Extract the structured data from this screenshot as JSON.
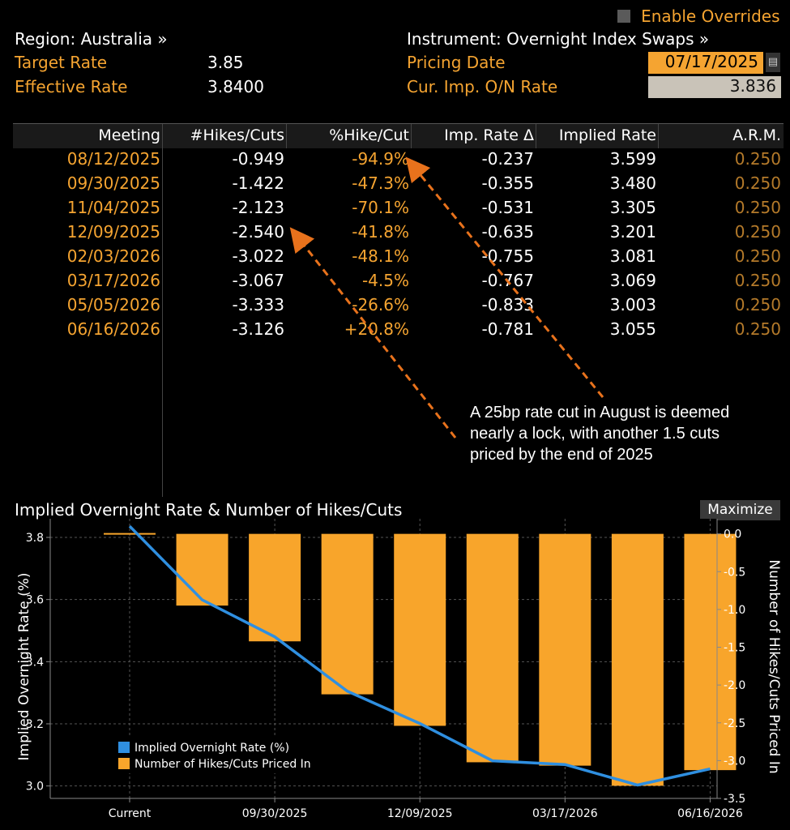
{
  "header": {
    "enable_overrides": "Enable Overrides",
    "region": "Region: Australia »",
    "instrument": "Instrument: Overnight Index Swaps »",
    "target_rate_label": "Target Rate",
    "target_rate_value": "3.85",
    "effective_rate_label": "Effective Rate",
    "effective_rate_value": "3.8400",
    "pricing_date_label": "Pricing Date",
    "pricing_date_value": "07/17/2025",
    "cur_imp_label": "Cur. Imp. O/N Rate",
    "cur_imp_value": "3.836"
  },
  "table": {
    "columns": [
      "Meeting",
      "#Hikes/Cuts",
      "%Hike/Cut",
      "Imp. Rate Δ",
      "Implied Rate",
      "A.R.M."
    ],
    "rows": [
      [
        "08/12/2025",
        "-0.949",
        "-94.9%",
        "-0.237",
        "3.599",
        "0.250"
      ],
      [
        "09/30/2025",
        "-1.422",
        "-47.3%",
        "-0.355",
        "3.480",
        "0.250"
      ],
      [
        "11/04/2025",
        "-2.123",
        "-70.1%",
        "-0.531",
        "3.305",
        "0.250"
      ],
      [
        "12/09/2025",
        "-2.540",
        "-41.8%",
        "-0.635",
        "3.201",
        "0.250"
      ],
      [
        "02/03/2026",
        "-3.022",
        "-48.1%",
        "-0.755",
        "3.081",
        "0.250"
      ],
      [
        "03/17/2026",
        "-3.067",
        "-4.5%",
        "-0.767",
        "3.069",
        "0.250"
      ],
      [
        "05/05/2026",
        "-3.333",
        "-26.6%",
        "-0.833",
        "3.003",
        "0.250"
      ],
      [
        "06/16/2026",
        "-3.126",
        "+20.8%",
        "-0.781",
        "3.055",
        "0.250"
      ]
    ]
  },
  "annotation": {
    "line1": "A 25bp rate cut in August is deemed",
    "line2": "nearly a lock, with another 1.5 cuts",
    "line3": "priced by the end of 2025"
  },
  "chart_title": "Implied Overnight Rate & Number of Hikes/Cuts",
  "maximize_label": "Maximize",
  "chart_data": {
    "type": "bar",
    "title": "Implied Overnight Rate & Number of Hikes/Cuts",
    "ylabel": "Implied Overnight Rate (%)",
    "y2label": "Number of Hikes/Cuts Priced In",
    "ylim": [
      2.96,
      3.86
    ],
    "y2lim": [
      -3.5,
      0.2
    ],
    "yticks": [
      "3.8",
      "3.6",
      "3.4",
      "3.2",
      "3.0"
    ],
    "y2ticks": [
      "0.0",
      "-0.5",
      "-1.0",
      "-1.5",
      "-2.0",
      "-2.5",
      "-3.0",
      "-3.5"
    ],
    "xtick_labels": [
      "Current",
      "09/30/2025",
      "12/09/2025",
      "03/17/2026",
      "06/16/2026"
    ],
    "categories": [
      "Current",
      "08/12/2025",
      "09/30/2025",
      "11/04/2025",
      "12/09/2025",
      "02/03/2026",
      "03/17/2026",
      "05/05/2026",
      "06/16/2026"
    ],
    "series": [
      {
        "name": "Implied Overnight Rate (%)",
        "kind": "line",
        "axis": "left",
        "color": "#2f8fe0",
        "values": [
          3.836,
          3.599,
          3.48,
          3.305,
          3.201,
          3.081,
          3.069,
          3.003,
          3.055
        ]
      },
      {
        "name": "Number of Hikes/Cuts Priced In",
        "kind": "bar",
        "axis": "right",
        "color": "#f8a52b",
        "values": [
          0,
          -0.949,
          -1.422,
          -2.123,
          -2.54,
          -3.022,
          -3.067,
          -3.333,
          -3.126
        ]
      }
    ],
    "legend_position": "bottom-left",
    "grid": true
  },
  "colors": {
    "accent": "#f5a431",
    "text": "#ffffff",
    "line": "#2f8fe0",
    "bar": "#f8a52b"
  }
}
